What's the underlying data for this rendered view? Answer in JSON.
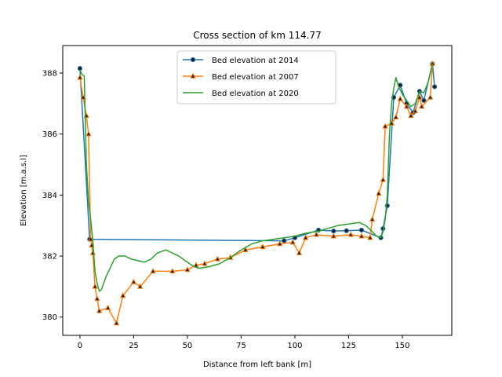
{
  "chart_data": {
    "type": "line",
    "title": "Cross section of km 114.77",
    "xlabel": "Distance from left bank [m]",
    "ylabel": "Elevation [m.a.s.l]",
    "xlim": [
      -8,
      173
    ],
    "ylim": [
      379.4,
      388.9
    ],
    "xticks": [
      0,
      25,
      50,
      75,
      100,
      125,
      150
    ],
    "yticks": [
      380,
      382,
      384,
      386,
      388
    ],
    "grid": false,
    "legend_position": "top-center",
    "series": [
      {
        "name": "Bed elevation at 2014",
        "color": "#1f77b4",
        "marker": "circle",
        "points": [
          [
            0,
            388.15
          ],
          [
            4.5,
            382.55
          ],
          [
            95,
            382.5
          ],
          [
            100,
            382.6
          ],
          [
            111,
            382.85
          ],
          [
            118,
            382.82
          ],
          [
            124,
            382.83
          ],
          [
            131,
            382.85
          ],
          [
            140,
            382.6
          ],
          [
            141,
            382.9
          ],
          [
            143,
            383.65
          ],
          [
            146,
            387.2
          ],
          [
            149,
            387.6
          ],
          [
            152,
            387.0
          ],
          [
            155,
            386.7
          ],
          [
            158,
            387.4
          ],
          [
            160,
            387.1
          ],
          [
            164,
            388.3
          ],
          [
            165,
            387.55
          ]
        ]
      },
      {
        "name": "Bed elevation at 2007",
        "color": "#ff7f0e",
        "marker": "triangle",
        "points": [
          [
            0,
            387.85
          ],
          [
            1.5,
            387.2
          ],
          [
            3,
            386.6
          ],
          [
            4,
            386.0
          ],
          [
            5,
            382.55
          ],
          [
            5.5,
            382.35
          ],
          [
            6,
            382.1
          ],
          [
            7,
            381.0
          ],
          [
            8,
            380.6
          ],
          [
            9,
            380.2
          ],
          [
            13,
            380.3
          ],
          [
            17,
            379.8
          ],
          [
            20,
            380.7
          ],
          [
            25,
            381.15
          ],
          [
            28,
            381.0
          ],
          [
            34,
            381.5
          ],
          [
            43,
            381.5
          ],
          [
            50,
            381.55
          ],
          [
            54,
            381.7
          ],
          [
            58,
            381.75
          ],
          [
            64,
            381.9
          ],
          [
            70,
            381.95
          ],
          [
            77,
            382.2
          ],
          [
            85,
            382.3
          ],
          [
            93,
            382.4
          ],
          [
            99,
            382.45
          ],
          [
            102,
            382.1
          ],
          [
            105,
            382.6
          ],
          [
            110,
            382.7
          ],
          [
            118,
            382.65
          ],
          [
            126,
            382.7
          ],
          [
            131,
            382.65
          ],
          [
            135,
            382.6
          ],
          [
            136,
            383.2
          ],
          [
            139,
            384.05
          ],
          [
            141,
            384.5
          ],
          [
            142,
            386.25
          ],
          [
            145,
            386.35
          ],
          [
            147,
            386.55
          ],
          [
            149,
            387.15
          ],
          [
            152,
            386.9
          ],
          [
            154,
            386.6
          ],
          [
            156,
            386.75
          ],
          [
            158,
            387.2
          ],
          [
            159,
            386.9
          ],
          [
            163,
            387.2
          ],
          [
            164,
            388.3
          ]
        ]
      },
      {
        "name": "Bed elevation at 2020",
        "color": "#2ca02c",
        "marker": "none",
        "points": [
          [
            0,
            388.1
          ],
          [
            1,
            387.95
          ],
          [
            2,
            387.9
          ],
          [
            3,
            385.0
          ],
          [
            4,
            383.8
          ],
          [
            5,
            383.2
          ],
          [
            6,
            382.5
          ],
          [
            7,
            381.5
          ],
          [
            8,
            381.1
          ],
          [
            9,
            380.85
          ],
          [
            10,
            380.9
          ],
          [
            12,
            381.3
          ],
          [
            14,
            381.6
          ],
          [
            16,
            381.9
          ],
          [
            18,
            382.0
          ],
          [
            21,
            382.0
          ],
          [
            24,
            381.9
          ],
          [
            27,
            381.85
          ],
          [
            30,
            381.8
          ],
          [
            33,
            381.9
          ],
          [
            36,
            382.1
          ],
          [
            38,
            382.15
          ],
          [
            40,
            382.2
          ],
          [
            43,
            382.1
          ],
          [
            46,
            382.0
          ],
          [
            49,
            381.85
          ],
          [
            52,
            381.7
          ],
          [
            55,
            381.6
          ],
          [
            60,
            381.65
          ],
          [
            65,
            381.75
          ],
          [
            70,
            381.95
          ],
          [
            75,
            382.2
          ],
          [
            80,
            382.4
          ],
          [
            85,
            382.5
          ],
          [
            90,
            382.55
          ],
          [
            95,
            382.6
          ],
          [
            100,
            382.65
          ],
          [
            105,
            382.75
          ],
          [
            110,
            382.8
          ],
          [
            115,
            382.9
          ],
          [
            120,
            383.0
          ],
          [
            125,
            383.05
          ],
          [
            130,
            383.1
          ],
          [
            133,
            383.0
          ],
          [
            136,
            382.8
          ],
          [
            138,
            382.65
          ],
          [
            140,
            382.6
          ],
          [
            141,
            382.8
          ],
          [
            142,
            383.2
          ],
          [
            143,
            384.0
          ],
          [
            144,
            386.0
          ],
          [
            145,
            387.0
          ],
          [
            146,
            387.5
          ],
          [
            147,
            387.85
          ],
          [
            148,
            387.6
          ],
          [
            150,
            387.3
          ],
          [
            152,
            387.1
          ],
          [
            154,
            386.9
          ],
          [
            156,
            387.0
          ],
          [
            158,
            387.4
          ],
          [
            160,
            387.35
          ],
          [
            162,
            387.7
          ],
          [
            164,
            388.3
          ]
        ]
      }
    ]
  }
}
